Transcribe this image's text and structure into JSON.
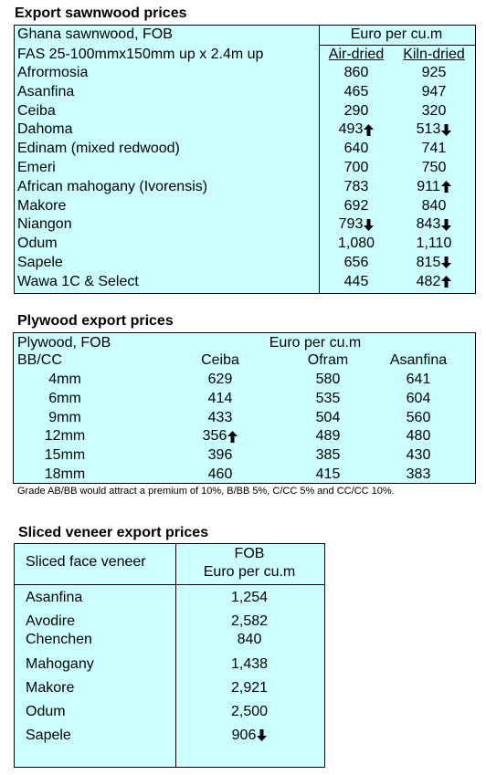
{
  "sawnwood": {
    "title": "Export sawnwood prices",
    "header_left_1": "Ghana sawnwood, FOB",
    "header_left_2": "FAS 25-100mmx150mm up x 2.4m up",
    "unit": "Euro per cu.m",
    "col_air": "Air-dried",
    "col_kiln": "Kiln-dried",
    "rows": [
      {
        "name": "Afrormosia",
        "air": "860",
        "air_arrow": "",
        "kiln": "925",
        "kiln_arrow": ""
      },
      {
        "name": "Asanfina",
        "air": "465",
        "air_arrow": "",
        "kiln": "947",
        "kiln_arrow": ""
      },
      {
        "name": "Ceiba",
        "air": "290",
        "air_arrow": "",
        "kiln": "320",
        "kiln_arrow": ""
      },
      {
        "name": "Dahoma",
        "air": "493",
        "air_arrow": "up",
        "kiln": "513",
        "kiln_arrow": "down"
      },
      {
        "name": "Edinam (mixed redwood)",
        "air": "640",
        "air_arrow": "",
        "kiln": "741",
        "kiln_arrow": ""
      },
      {
        "name": "Emeri",
        "air": "700",
        "air_arrow": "",
        "kiln": "750",
        "kiln_arrow": ""
      },
      {
        "name": "African mahogany (Ivorensis)",
        "air": "783",
        "air_arrow": "",
        "kiln": "911",
        "kiln_arrow": "up"
      },
      {
        "name": "Makore",
        "air": "692",
        "air_arrow": "",
        "kiln": "840",
        "kiln_arrow": ""
      },
      {
        "name": "Niangon",
        "air": "793",
        "air_arrow": "down",
        "kiln": "843",
        "kiln_arrow": "down"
      },
      {
        "name": "Odum",
        "air": "1,080",
        "air_arrow": "",
        "kiln": "1,110",
        "kiln_arrow": ""
      },
      {
        "name": "Sapele",
        "air": "656",
        "air_arrow": "",
        "kiln": "815",
        "kiln_arrow": "down"
      },
      {
        "name": "Wawa 1C & Select",
        "air": "445",
        "air_arrow": "",
        "kiln": "482",
        "kiln_arrow": "up"
      }
    ]
  },
  "plywood": {
    "title": "Plywood export prices",
    "header_left_1": "Plywood, FOB",
    "header_left_2": "BB/CC",
    "unit": "Euro per cu.m",
    "columns": [
      "Ceiba",
      "Ofram",
      "Asanfina"
    ],
    "rows": [
      {
        "size": "4mm",
        "values": [
          "629",
          "580",
          "641"
        ],
        "arrows": [
          "",
          "",
          ""
        ]
      },
      {
        "size": "6mm",
        "values": [
          "414",
          "535",
          "604"
        ],
        "arrows": [
          "",
          "",
          ""
        ]
      },
      {
        "size": "9mm",
        "values": [
          "433",
          "504",
          "560"
        ],
        "arrows": [
          "",
          "",
          ""
        ]
      },
      {
        "size": "12mm",
        "values": [
          "356",
          "489",
          "480"
        ],
        "arrows": [
          "up",
          "",
          ""
        ]
      },
      {
        "size": "15mm",
        "values": [
          "396",
          "385",
          "430"
        ],
        "arrows": [
          "",
          "",
          ""
        ]
      },
      {
        "size": "18mm",
        "values": [
          "460",
          "415",
          "383"
        ],
        "arrows": [
          "",
          "",
          ""
        ]
      }
    ],
    "note": "Grade AB/BB would attract a premium of 10%, B/BB 5%, C/CC 5% and CC/CC 10%."
  },
  "veneer": {
    "title": "Sliced veneer export prices",
    "header_left": "Sliced face veneer",
    "header_right_1": "FOB",
    "header_right_2": "Euro per cu.m",
    "rows": [
      {
        "name": "Asanfina",
        "value": "1,254",
        "arrow": ""
      },
      {
        "name": "Avodire",
        "value": "2,582",
        "arrow": ""
      },
      {
        "name": "Chenchen",
        "value": "840",
        "arrow": ""
      },
      {
        "name": "Mahogany",
        "value": "1,438",
        "arrow": ""
      },
      {
        "name": "Makore",
        "value": "2,921",
        "arrow": ""
      },
      {
        "name": "Odum",
        "value": "2,500",
        "arrow": ""
      },
      {
        "name": "Sapele",
        "value": "906",
        "arrow": "down"
      }
    ]
  },
  "colors": {
    "table_bg": "#ccffff",
    "border": "#000000",
    "text": "#000000"
  }
}
